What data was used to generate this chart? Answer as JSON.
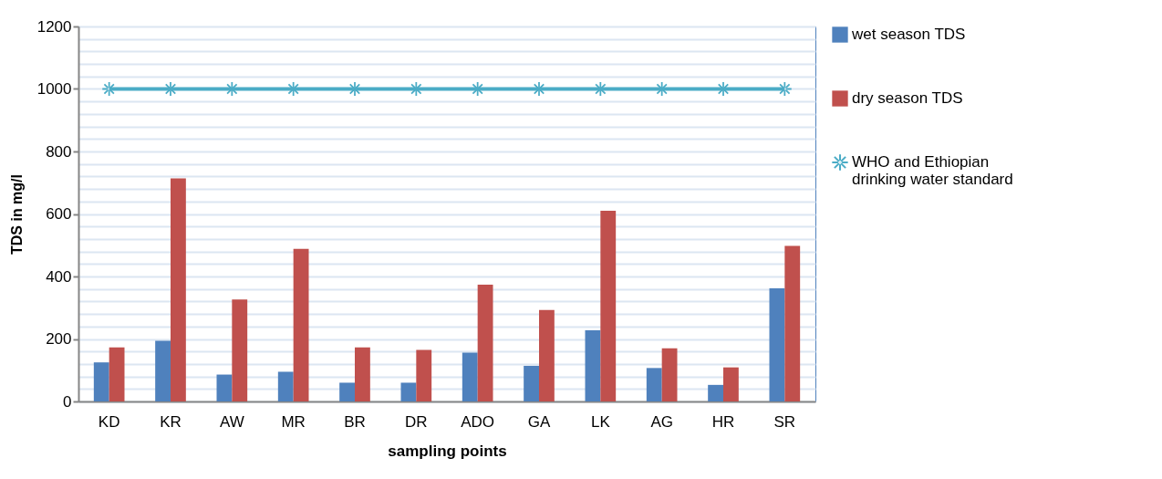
{
  "chart_data": {
    "type": "bar",
    "xlabel": "sampling points",
    "ylabel": "TDS in mg/l",
    "categories": [
      "KD",
      "KR",
      "AW",
      "MR",
      "BR",
      "DR",
      "ADO",
      "GA",
      "LK",
      "AG",
      "HR",
      "SR"
    ],
    "series": [
      {
        "name": "wet season TDS",
        "color": "#4f81bd",
        "values": [
          125,
          194,
          86,
          95,
          60,
          60,
          156,
          114,
          228,
          107,
          53,
          362
        ]
      },
      {
        "name": "dry season TDS",
        "color": "#c0504d",
        "values": [
          173,
          714,
          326,
          488,
          173,
          165,
          374,
          293,
          610,
          170,
          109,
          498
        ]
      },
      {
        "name": "WHO and Ethiopian drinking water standard",
        "type": "line",
        "color": "#4bacc6",
        "marker": "star",
        "line_style": "solid",
        "values": [
          1000,
          1000,
          1000,
          1000,
          1000,
          1000,
          1000,
          1000,
          1000,
          1000,
          1000,
          1000
        ]
      }
    ],
    "ylim": [
      0,
      1200
    ],
    "yticks": [
      0,
      {
        "value": 40,
        "label": null
      },
      {
        "value": 80,
        "label": null
      },
      {
        "value": 120,
        "label": null
      },
      {
        "value": 160,
        "label": null
      },
      200,
      {
        "value": 240,
        "label": null
      },
      {
        "value": 280,
        "label": null
      },
      {
        "value": 320,
        "label": null
      },
      {
        "value": 360,
        "label": null
      },
      400,
      {
        "value": 440,
        "label": null
      },
      {
        "value": 480,
        "label": null
      },
      {
        "value": 520,
        "label": null
      },
      {
        "value": 560,
        "label": null
      },
      600,
      {
        "value": 640,
        "label": null
      },
      {
        "value": 680,
        "label": null
      },
      {
        "value": 720,
        "label": null
      },
      {
        "value": 760,
        "label": null
      },
      800,
      {
        "value": 840,
        "label": null
      },
      {
        "value": 880,
        "label": null
      },
      {
        "value": 920,
        "label": null
      },
      {
        "value": 960,
        "label": null
      },
      1000,
      {
        "value": 1040,
        "label": null
      },
      {
        "value": 1080,
        "label": null
      },
      {
        "value": 1120,
        "label": null
      },
      {
        "value": 1160,
        "label": null
      },
      1200
    ],
    "grid": "y",
    "legend": "right"
  }
}
